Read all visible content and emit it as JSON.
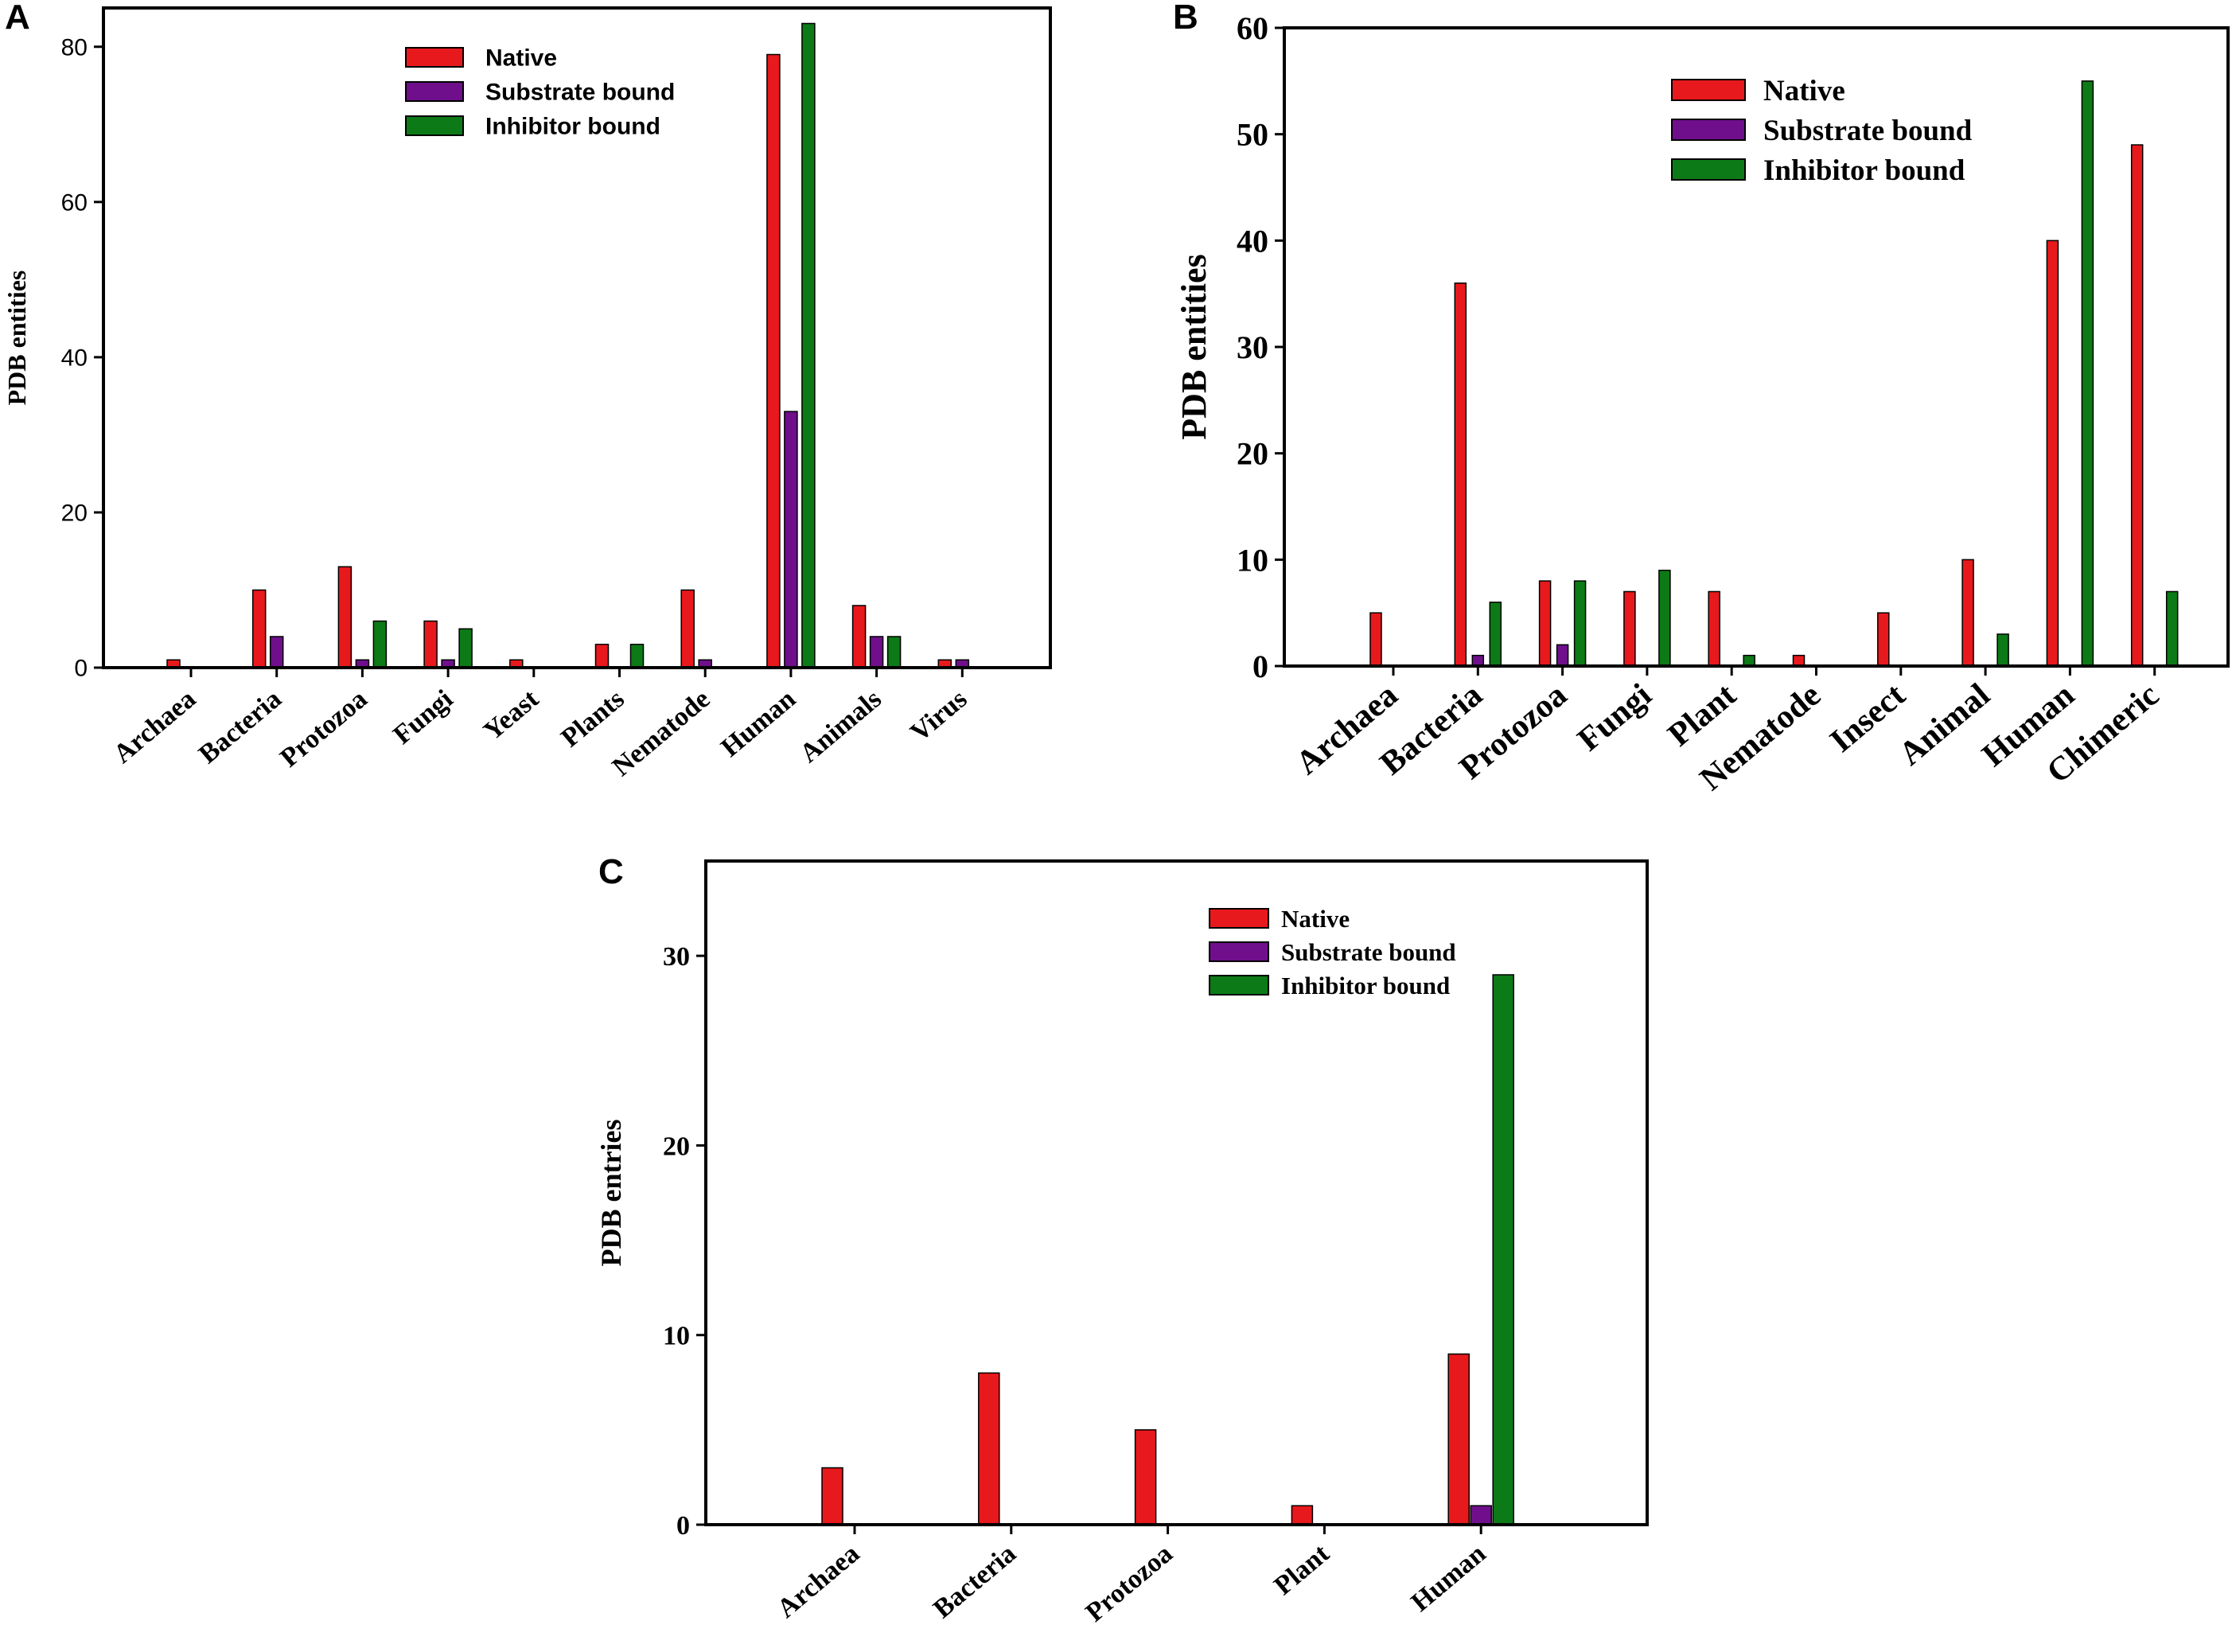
{
  "colors": {
    "native": "#e8191c",
    "substrate": "#6f0f8c",
    "inhibitor": "#0c7a16"
  },
  "chart_data": [
    {
      "panel": "A",
      "type": "bar",
      "ylabel": "PDB entities",
      "ylim": [
        0,
        85
      ],
      "yticks": [
        0,
        20,
        40,
        60,
        80
      ],
      "categories": [
        "Archaea",
        "Bacteria",
        "Protozoa",
        "Fungi",
        "Yeast",
        "Plants",
        "Nematode",
        "Human",
        "Animals",
        "Virus"
      ],
      "legend_position": "top-center",
      "series": [
        {
          "name": "Native",
          "color_key": "native",
          "values": [
            1,
            10,
            13,
            6,
            1,
            3,
            10,
            79,
            8,
            1
          ]
        },
        {
          "name": "Substrate bound",
          "color_key": "substrate",
          "values": [
            0,
            4,
            1,
            1,
            0,
            0,
            1,
            33,
            4,
            1
          ]
        },
        {
          "name": "Inhibitor bound",
          "color_key": "inhibitor",
          "values": [
            0,
            0,
            6,
            5,
            0,
            3,
            0,
            83,
            4,
            0
          ]
        }
      ]
    },
    {
      "panel": "B",
      "type": "bar",
      "ylabel": "PDB entities",
      "ylim": [
        0,
        60
      ],
      "yticks": [
        0,
        10,
        20,
        30,
        40,
        50,
        60
      ],
      "categories": [
        "Archaea",
        "Bacteria",
        "Protozoa",
        "Fungi",
        "Plant",
        "Nematode",
        "Insect",
        "Animal",
        "Human",
        "Chimeric"
      ],
      "legend_position": "top-center",
      "series": [
        {
          "name": "Native",
          "color_key": "native",
          "values": [
            5,
            36,
            8,
            7,
            7,
            1,
            5,
            10,
            40,
            49
          ]
        },
        {
          "name": "Substrate bound",
          "color_key": "substrate",
          "values": [
            0,
            1,
            2,
            0,
            0,
            0,
            0,
            0,
            0,
            0
          ]
        },
        {
          "name": "Inhibitor bound",
          "color_key": "inhibitor",
          "values": [
            0,
            6,
            8,
            9,
            1,
            0,
            0,
            3,
            55,
            7
          ]
        }
      ]
    },
    {
      "panel": "C",
      "type": "bar",
      "ylabel": "PDB entries",
      "ylim": [
        0,
        35
      ],
      "yticks": [
        0,
        10,
        20,
        30
      ],
      "categories": [
        "Archaea",
        "Bacteria",
        "Protozoa",
        "Plant",
        "Human"
      ],
      "legend_position": "top-center",
      "series": [
        {
          "name": "Native",
          "color_key": "native",
          "values": [
            3,
            8,
            5,
            1,
            9
          ]
        },
        {
          "name": "Substrate bound",
          "color_key": "substrate",
          "values": [
            0,
            0,
            0,
            0,
            1
          ]
        },
        {
          "name": "Inhibitor bound",
          "color_key": "inhibitor",
          "values": [
            0,
            0,
            0,
            0,
            29
          ]
        }
      ]
    }
  ]
}
